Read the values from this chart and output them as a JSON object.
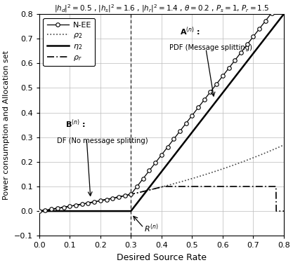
{
  "title": "$|h_d|^2 = 0.5$ , $|h_s|^2 = 1.6$ , $|h_r|^2 = 1.4$ , $\\theta = 0.2$ , $P_s = 1$, $P_r = 1.5$",
  "xlabel": "Desired Source Rate",
  "ylabel": "Power consumption and Allocation set",
  "xlim": [
    0,
    0.8
  ],
  "ylim": [
    -0.1,
    0.8
  ],
  "hd2": 0.5,
  "hs2": 1.6,
  "hr2": 1.4,
  "theta": 0.2,
  "Ps": 1.0,
  "Pr": 1.5,
  "R_threshold": 0.3,
  "R_max": 0.775,
  "background_color": "#ffffff",
  "grid_color": "#bbbbbb"
}
